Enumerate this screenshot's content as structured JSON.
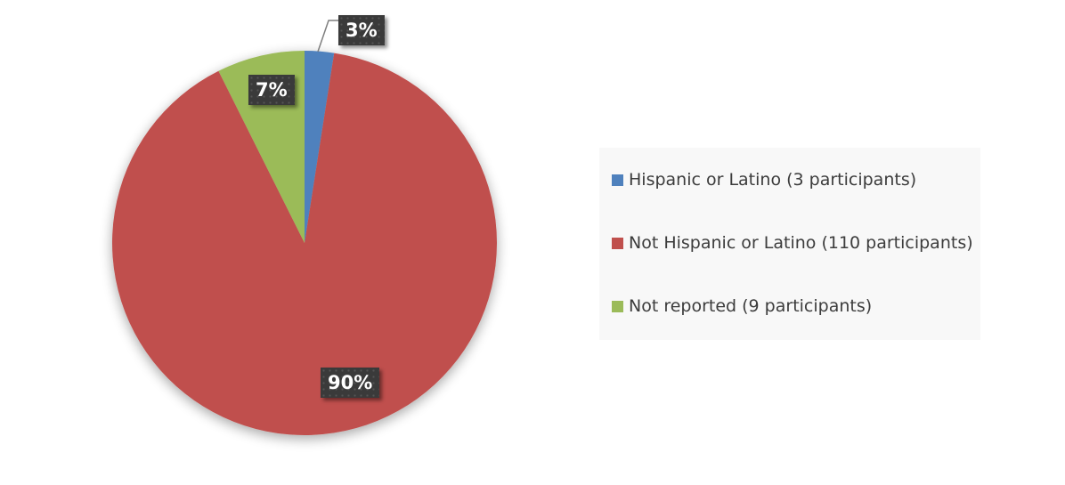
{
  "chart_data": {
    "type": "pie",
    "title": "",
    "categories": [
      "Hispanic or Latino",
      "Not Hispanic or Latino",
      "Not reported"
    ],
    "values": [
      3,
      110,
      9
    ],
    "percent_labels": [
      "3%",
      "90%",
      "7%"
    ],
    "colors": [
      "#4f81bd",
      "#c0504d",
      "#9bbb59"
    ],
    "legend_position": "right",
    "legend": [
      "Hispanic or Latino (3 participants)",
      "Not Hispanic or Latino (110 participants)",
      "Not reported (9 participants)"
    ]
  }
}
